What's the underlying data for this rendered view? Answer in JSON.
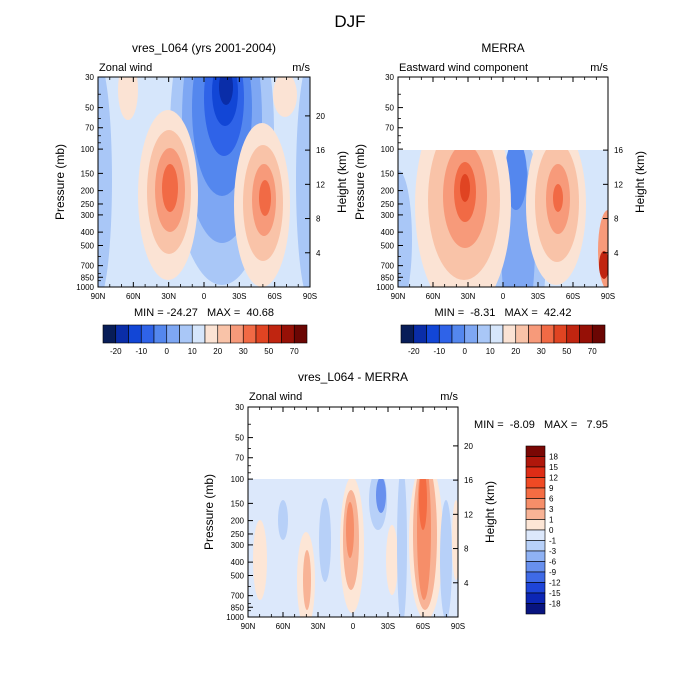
{
  "figure": {
    "title": "DJF"
  },
  "chart_data": [
    {
      "type": "heatmap",
      "title": "vres_L064 (yrs 2001-2004)",
      "left_label": "Zonal wind",
      "right_label": "m/s",
      "ylabel": "Pressure (mb)",
      "y2label": "Height (km)",
      "x_ticks": [
        "90N",
        "60N",
        "30N",
        "0",
        "30S",
        "60S",
        "90S"
      ],
      "y_ticks": [
        "30",
        "50",
        "70",
        "100",
        "150",
        "200",
        "250",
        "300",
        "400",
        "500",
        "700",
        "850",
        "1000"
      ],
      "y2_ticks": [
        "4",
        "8",
        "12",
        "16",
        "20"
      ],
      "stats": "MIN = -24.27   MAX =  40.68",
      "min": -24.27,
      "max": 40.68,
      "levels": [
        "-20",
        "-10",
        "0",
        "10",
        "20",
        "30",
        "50",
        "70"
      ]
    },
    {
      "type": "heatmap",
      "title": "MERRA",
      "left_label": "Eastward wind component",
      "right_label": "m/s",
      "ylabel": "Pressure (mb)",
      "y2label": "Height (km)",
      "x_ticks": [
        "90N",
        "60N",
        "30N",
        "0",
        "30S",
        "60S",
        "90S"
      ],
      "y_ticks": [
        "30",
        "50",
        "70",
        "100",
        "150",
        "200",
        "250",
        "300",
        "400",
        "500",
        "700",
        "850",
        "1000"
      ],
      "y2_ticks": [
        "4",
        "8",
        "12",
        "16"
      ],
      "stats": "MIN =  -8.31   MAX =  42.42",
      "min": -8.31,
      "max": 42.42,
      "levels": [
        "-20",
        "-10",
        "0",
        "10",
        "20",
        "30",
        "50",
        "70"
      ]
    },
    {
      "type": "heatmap",
      "title": "vres_L064 - MERRA",
      "left_label": "Zonal wind",
      "right_label": "m/s",
      "ylabel": "Pressure (mb)",
      "y2label": "Height (km)",
      "x_ticks": [
        "90N",
        "60N",
        "30N",
        "0",
        "30S",
        "60S",
        "90S"
      ],
      "y_ticks": [
        "30",
        "50",
        "70",
        "100",
        "150",
        "200",
        "250",
        "300",
        "400",
        "500",
        "700",
        "850",
        "1000"
      ],
      "y2_ticks": [
        "4",
        "8",
        "12",
        "16",
        "20"
      ],
      "stats": "MIN =  -8.09   MAX =   7.95",
      "min": -8.09,
      "max": 7.95,
      "levels": [
        "18",
        "15",
        "12",
        "9",
        "6",
        "3",
        "1",
        "0",
        "-1",
        "-3",
        "-6",
        "-9",
        "-12",
        "-15",
        "-18"
      ]
    }
  ],
  "palette_abs": [
    "#081d58",
    "#0a2da8",
    "#1246d6",
    "#2f63e8",
    "#5487ee",
    "#7ea7f3",
    "#a9c7f7",
    "#d6e6fb",
    "#fbe3d4",
    "#f9c3a8",
    "#f79a7a",
    "#f16a45",
    "#e04422",
    "#c02510",
    "#961006",
    "#6b0603"
  ],
  "palette_diff": [
    "#7a0704",
    "#b0170b",
    "#de2d16",
    "#f04a24",
    "#f46c43",
    "#f68e69",
    "#f8b396",
    "#fde6d6",
    "#dce8fb",
    "#b7d0f8",
    "#8fb2f4",
    "#6890ee",
    "#3f6ae6",
    "#1e45d8",
    "#0c26b5",
    "#081480"
  ]
}
